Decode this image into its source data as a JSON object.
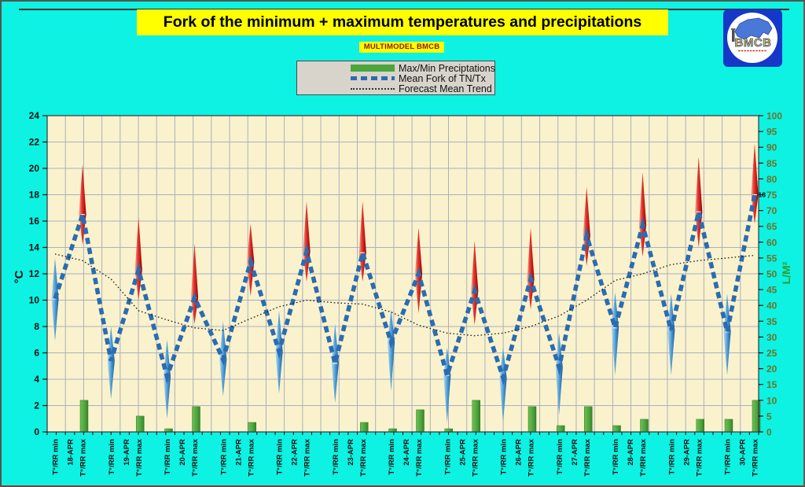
{
  "header": {
    "title": "Fork of the minimum + maximum temperatures and precipitations",
    "subtitle": "MULTIMODEL BMCB"
  },
  "logo": {
    "text": "BMCB"
  },
  "legend": {
    "items": [
      {
        "label": "Max/Min Preciptations",
        "swatch": "bar",
        "color": "#4CA63C"
      },
      {
        "label": "Mean Fork of TN/Tx",
        "swatch": "dashed",
        "color": "#2B6CB0"
      },
      {
        "label": "Forecast Mean Trend",
        "swatch": "dotted",
        "color": "#333333"
      }
    ]
  },
  "chart_data": {
    "type": "combo: precipitation bars + min/max temperature fork spindles + dashed mean-fork line + dotted forecast trend line",
    "left_axis": {
      "label": "°C",
      "min": 0,
      "max": 24,
      "step": 2,
      "ticks": [
        0,
        2,
        4,
        6,
        8,
        10,
        12,
        14,
        16,
        18,
        20,
        22,
        24
      ]
    },
    "right_axis": {
      "label": "L/M²",
      "min": 0,
      "max": 100,
      "step": 5,
      "ticks": [
        0,
        5,
        10,
        15,
        20,
        25,
        30,
        35,
        40,
        45,
        50,
        55,
        60,
        65,
        70,
        75,
        80,
        85,
        90,
        95,
        100
      ]
    },
    "slot_labels": {
      "min": "T°/RR min",
      "max": "T°/RR max"
    },
    "last_point_label": "18",
    "grid": true,
    "legend_position": "top-center",
    "colors": {
      "plot_bg": "#FAF2CC",
      "grid": "#AAB0BF",
      "border": "#3C4048",
      "bar": "#4CA63C",
      "fork_line": "#2B6CB0",
      "trend_line": "#1A1A1A",
      "spike_red_dark": "#8C0000",
      "spike_red_light": "#F2AFA4",
      "spike_blue_dark": "#1A5590",
      "spike_blue_light": "#BBDDF2"
    },
    "days": [
      {
        "date": "18-APR",
        "tn": {
          "low": 6.9,
          "mean": 10.1,
          "high": 13.2
        },
        "tx": {
          "low": 14.2,
          "mean": 16.5,
          "high": 20.3
        },
        "precip_min": 0,
        "precip_max": 10,
        "trend_min": 13.5,
        "trend_max": 13.0
      },
      {
        "date": "19-APR",
        "tn": {
          "low": 2.5,
          "mean": 5.4,
          "high": 8.0
        },
        "tx": {
          "low": 10.0,
          "mean": 12.3,
          "high": 16.3
        },
        "precip_min": 0,
        "precip_max": 5,
        "trend_min": 11.6,
        "trend_max": 9.2
      },
      {
        "date": "20-APR",
        "tn": {
          "low": 1.0,
          "mean": 4.2,
          "high": 7.0
        },
        "tx": {
          "low": 8.2,
          "mean": 10.2,
          "high": 14.3
        },
        "precip_min": 1,
        "precip_max": 8,
        "trend_min": 8.5,
        "trend_max": 7.9
      },
      {
        "date": "21-APR",
        "tn": {
          "low": 2.7,
          "mean": 5.5,
          "high": 8.4
        },
        "tx": {
          "low": 10.3,
          "mean": 12.9,
          "high": 15.8
        },
        "precip_min": 0,
        "precip_max": 3,
        "trend_min": 7.7,
        "trend_max": 8.6
      },
      {
        "date": "22-APR",
        "tn": {
          "low": 2.9,
          "mean": 6.1,
          "high": 9.2
        },
        "tx": {
          "low": 11.4,
          "mean": 13.7,
          "high": 17.5
        },
        "precip_min": 0,
        "precip_max": 0,
        "trend_min": 9.5,
        "trend_max": 10.0
      },
      {
        "date": "23-APR",
        "tn": {
          "low": 2.2,
          "mean": 5.2,
          "high": 8.2
        },
        "tx": {
          "low": 11.4,
          "mean": 13.6,
          "high": 17.5
        },
        "precip_min": 0,
        "precip_max": 3,
        "trend_min": 9.8,
        "trend_max": 9.7
      },
      {
        "date": "24-APR",
        "tn": {
          "low": 3.1,
          "mean": 6.8,
          "high": 9.3
        },
        "tx": {
          "low": 9.0,
          "mean": 12.0,
          "high": 15.5
        },
        "precip_min": 1,
        "precip_max": 7,
        "trend_min": 9.1,
        "trend_max": 8.1
      },
      {
        "date": "25-APR",
        "tn": {
          "low": 0.7,
          "mean": 4.3,
          "high": 6.4
        },
        "tx": {
          "low": 8.1,
          "mean": 10.7,
          "high": 14.5
        },
        "precip_min": 1,
        "precip_max": 10,
        "trend_min": 7.5,
        "trend_max": 7.3
      },
      {
        "date": "26-APR",
        "tn": {
          "low": 0.7,
          "mean": 4.1,
          "high": 6.4
        },
        "tx": {
          "low": 9.3,
          "mean": 11.6,
          "high": 15.5
        },
        "precip_min": 0,
        "precip_max": 8,
        "trend_min": 7.5,
        "trend_max": 8.0
      },
      {
        "date": "27-APR",
        "tn": {
          "low": 1.3,
          "mean": 4.9,
          "high": 7.5
        },
        "tx": {
          "low": 12.6,
          "mean": 14.9,
          "high": 18.6
        },
        "precip_min": 2,
        "precip_max": 8,
        "trend_min": 8.8,
        "trend_max": 10.0
      },
      {
        "date": "28-APR",
        "tn": {
          "low": 4.3,
          "mean": 7.9,
          "high": 10.6
        },
        "tx": {
          "low": 13.3,
          "mean": 15.7,
          "high": 19.7
        },
        "precip_min": 2,
        "precip_max": 4,
        "trend_min": 11.5,
        "trend_max": 12.0
      },
      {
        "date": "29-APR",
        "tn": {
          "low": 4.3,
          "mean": 7.7,
          "high": 10.5
        },
        "tx": {
          "low": 14.0,
          "mean": 16.7,
          "high": 20.9
        },
        "precip_min": 0,
        "precip_max": 4,
        "trend_min": 12.7,
        "trend_max": 13.0
      },
      {
        "date": "30-APR",
        "tn": {
          "low": 4.3,
          "mean": 7.6,
          "high": 10.5
        },
        "tx": {
          "low": 15.8,
          "mean": 18.0,
          "high": 21.9
        },
        "precip_min": 4,
        "precip_max": 10,
        "trend_min": 13.2,
        "trend_max": 13.4
      }
    ]
  }
}
